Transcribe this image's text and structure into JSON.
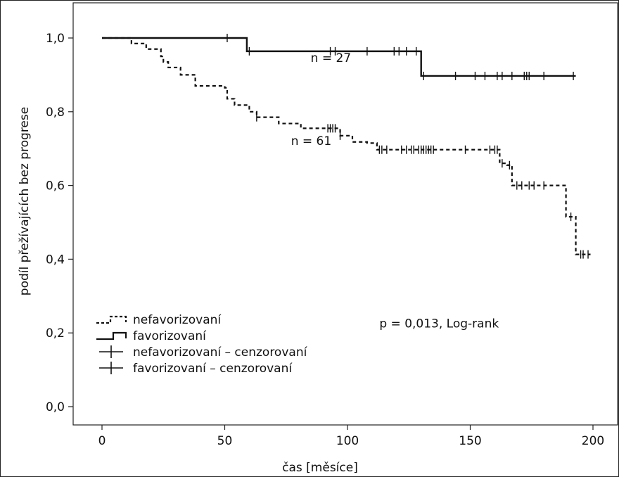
{
  "chart_data": {
    "type": "line",
    "subtype": "kaplan-meier",
    "xlabel": "čas [měsíce]",
    "ylabel": "podíl přežívajících bez progrese",
    "xlim": [
      -12,
      210
    ],
    "ylim": [
      -0.05,
      1.05
    ],
    "x_ticks": [
      0,
      50,
      100,
      150,
      200
    ],
    "y_ticks": [
      0.0,
      0.2,
      0.4,
      0.6,
      0.8,
      1.0
    ],
    "x_tick_labels": [
      "0",
      "50",
      "100",
      "150",
      "200"
    ],
    "y_tick_labels": [
      "0,0",
      "0,2",
      "0,4",
      "0,6",
      "0,8",
      "1,0"
    ],
    "grid": false,
    "legend_position": "bottom-left",
    "annotations": [
      {
        "text": "n = 27",
        "x": 85,
        "y": 0.935
      },
      {
        "text": "n = 61",
        "x": 77,
        "y": 0.71
      },
      {
        "text": "p = 0,013, Log-rank",
        "x": 113,
        "y": 0.215
      }
    ],
    "legend": [
      {
        "label": "nefavorizovaní",
        "style": "dashed-step"
      },
      {
        "label": "favorizovaní",
        "style": "solid-step"
      },
      {
        "label": "nefavorizovaní – cenzorovaní",
        "style": "censor-mark"
      },
      {
        "label": "favorizovaní – cenzorovaní",
        "style": "censor-mark"
      }
    ],
    "series": [
      {
        "name": "nefavorizovaní",
        "style": "dashed",
        "steps": [
          [
            0,
            1.0
          ],
          [
            12,
            0.985
          ],
          [
            18,
            0.97
          ],
          [
            24,
            0.95
          ],
          [
            25,
            0.935
          ],
          [
            27,
            0.92
          ],
          [
            32,
            0.9
          ],
          [
            38,
            0.87
          ],
          [
            50,
            0.865
          ],
          [
            51,
            0.835
          ],
          [
            54,
            0.818
          ],
          [
            60,
            0.8
          ],
          [
            63,
            0.785
          ],
          [
            72,
            0.768
          ],
          [
            81,
            0.755
          ],
          [
            97,
            0.735
          ],
          [
            102,
            0.718
          ],
          [
            108,
            0.715
          ],
          [
            112,
            0.697
          ],
          [
            162,
            0.66
          ],
          [
            165,
            0.655
          ],
          [
            167,
            0.6
          ],
          [
            188,
            0.6
          ],
          [
            189,
            0.515
          ],
          [
            193,
            0.413
          ],
          [
            199,
            0.413
          ]
        ],
        "censored_x": [
          63,
          92,
          93,
          94,
          95,
          97,
          113,
          114,
          116,
          122,
          124,
          126,
          127,
          129,
          130,
          131,
          132,
          133,
          134,
          135,
          148,
          158,
          160,
          161,
          163,
          166,
          169,
          171,
          174,
          176,
          180,
          191,
          195,
          196,
          198
        ]
      },
      {
        "name": "favorizovaní",
        "style": "solid",
        "steps": [
          [
            0,
            1.0
          ],
          [
            59,
            0.964
          ],
          [
            130,
            0.897
          ],
          [
            193,
            0.897
          ]
        ],
        "censored_x": [
          51,
          60,
          93,
          95,
          108,
          119,
          121,
          124,
          128,
          131,
          144,
          152,
          156,
          161,
          163,
          167,
          172,
          173,
          174,
          180,
          192
        ]
      }
    ]
  }
}
